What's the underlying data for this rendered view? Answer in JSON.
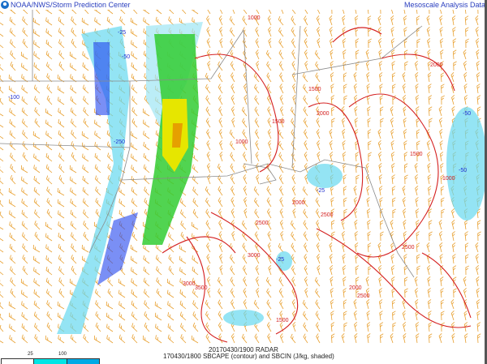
{
  "header": {
    "org": "NOAA/NWS/Storm Prediction Center",
    "product": "Mesoscale Analysis Data",
    "logo": "noaa-logo"
  },
  "footer": {
    "radar_time": "20170430/1900 RADAR",
    "caption": "170430/1800 SBCAPE (contour) and SBCIN (J/kg, shaded)"
  },
  "legend": {
    "ticks": [
      "25",
      "100"
    ],
    "colors": [
      "#ffffff",
      "#00e5e5",
      "#00aae5"
    ]
  },
  "contour_labels": [
    "1000",
    "1500",
    "2000",
    "2500",
    "3000",
    "3500",
    "1000",
    "1500",
    "2000",
    "2500",
    "3000",
    "1500",
    "2000",
    "2500",
    "1000",
    "1500",
    "2000",
    "2500"
  ],
  "cin_labels": [
    "-25",
    "-50",
    "-100",
    "-250",
    "-25",
    "-50",
    "-25",
    "-50"
  ],
  "colors": {
    "cape": "#d42020",
    "cin": "#2030d0",
    "barbs": "#e8a030",
    "borders": "#8a8a8a",
    "radar_green": "#33cc33",
    "radar_yellow": "#e6e600"
  }
}
